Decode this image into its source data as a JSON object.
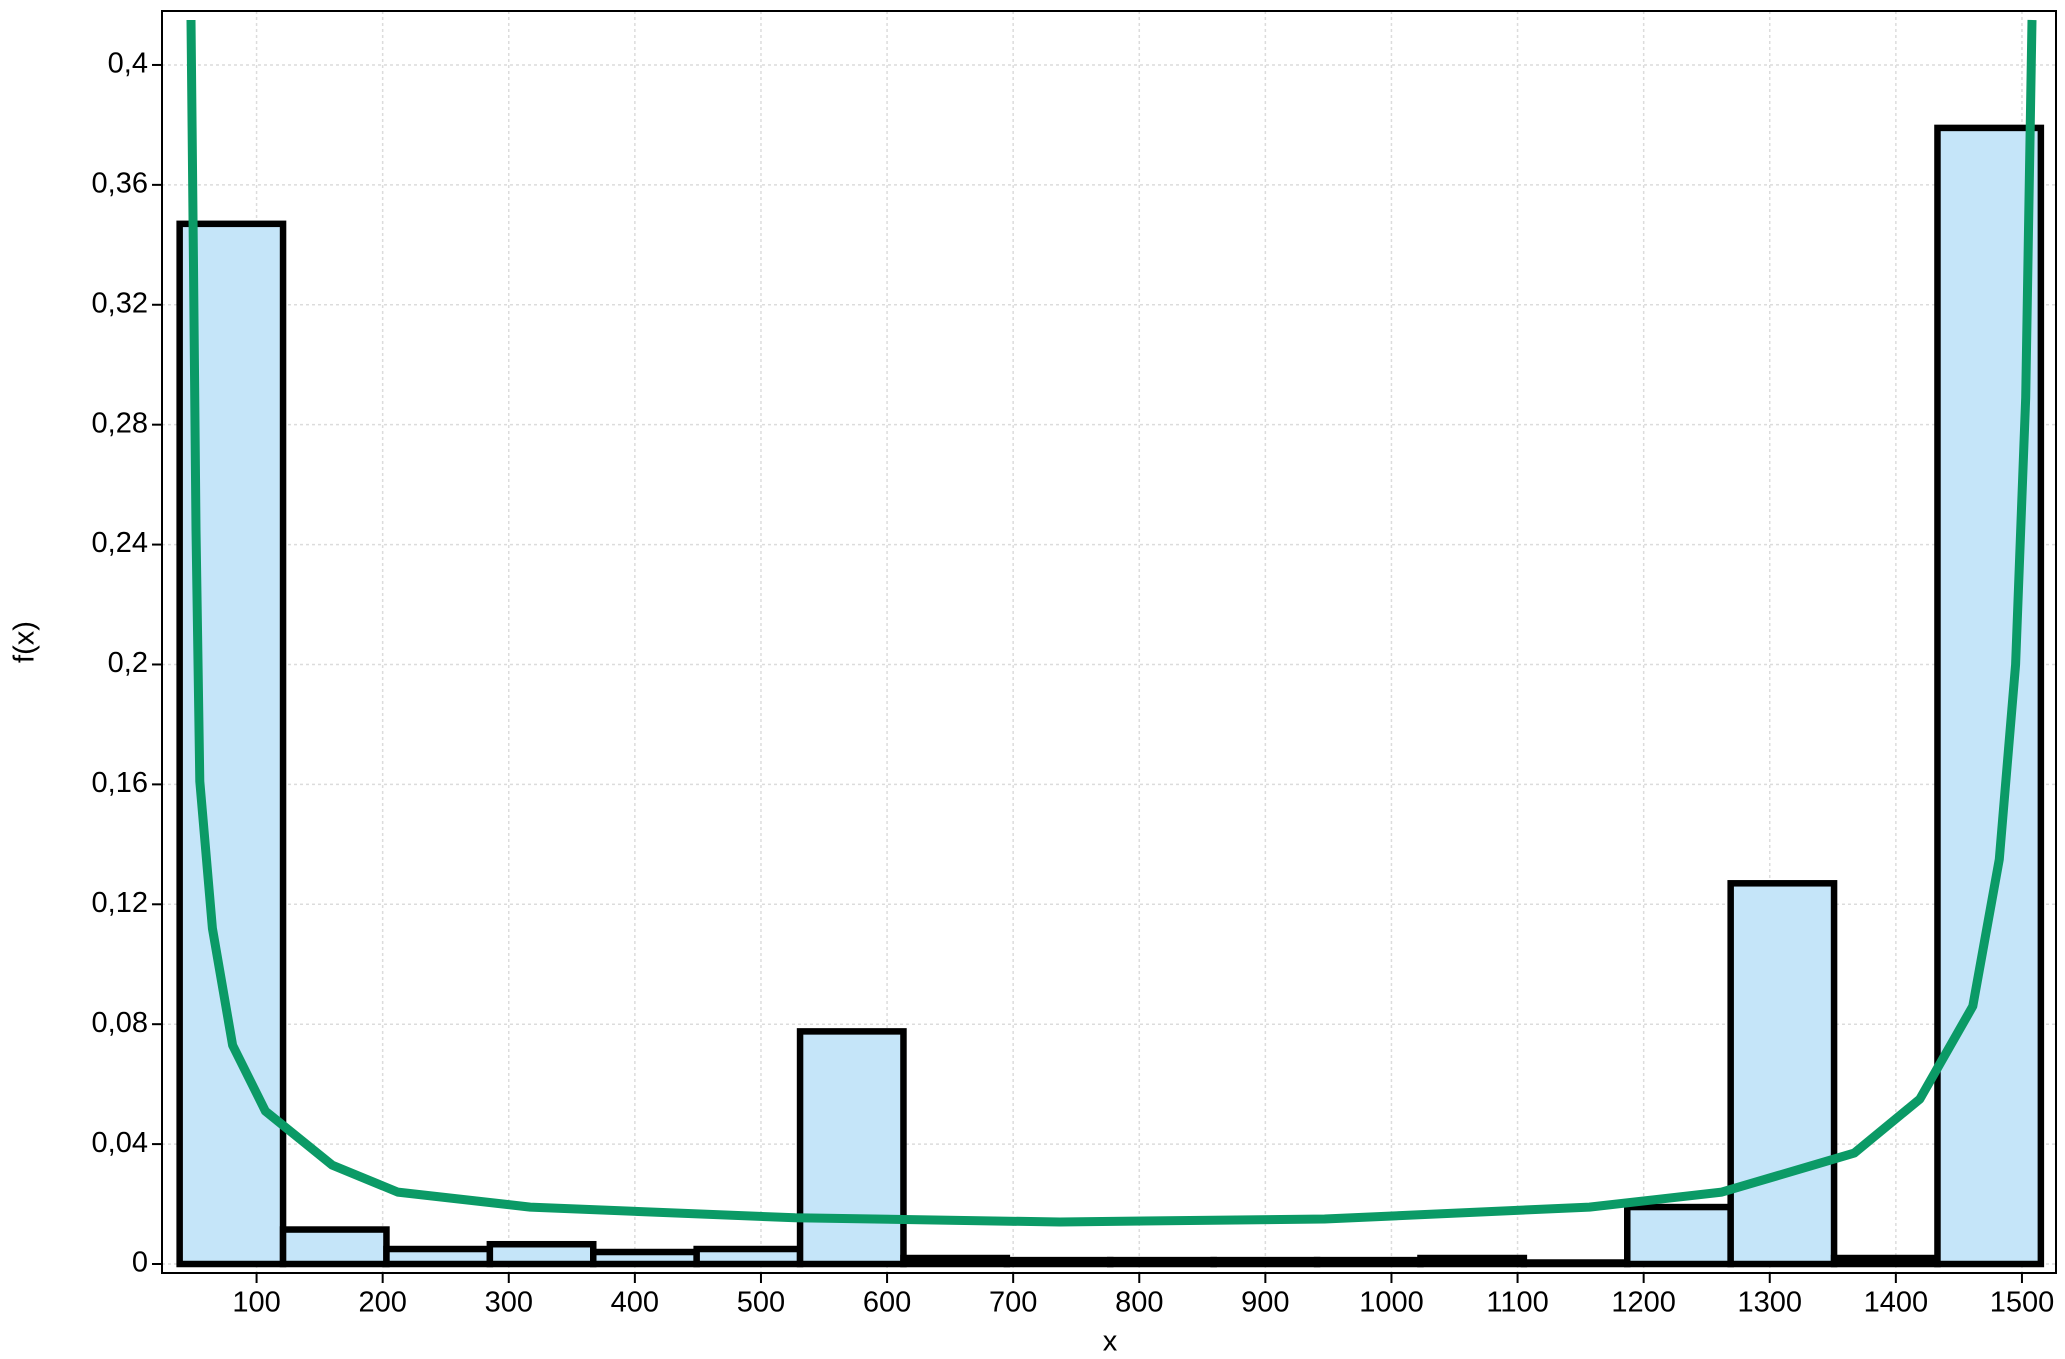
{
  "chart_data": {
    "type": "histogram",
    "x_label": "x",
    "y_label": "f(x)",
    "bins": [
      39,
      121,
      203,
      285,
      367,
      449,
      531,
      613,
      695,
      777,
      859,
      941,
      1023,
      1105,
      1187,
      1269,
      1351,
      1433,
      1515
    ],
    "values": [
      0.347,
      0.0115,
      0.005,
      0.0066,
      0.004,
      0.005,
      0.0776,
      0.002,
      0.0013,
      0.0013,
      0.0013,
      0.0013,
      0.002,
      0.0005,
      0.019,
      0.127,
      0.002,
      0.379
    ],
    "color": "#c5e5f9",
    "edge_color": "#000000",
    "curve": {
      "color": "#0b9a66",
      "x": [
        48,
        50,
        52,
        55,
        65,
        81,
        107,
        160,
        212,
        317,
        527,
        737,
        947,
        1157,
        1262,
        1367,
        1419,
        1461,
        1482,
        1495,
        1503,
        1508
      ],
      "y": [
        0.415,
        0.333,
        0.245,
        0.161,
        0.112,
        0.073,
        0.051,
        0.033,
        0.024,
        0.019,
        0.0154,
        0.014,
        0.015,
        0.019,
        0.024,
        0.037,
        0.055,
        0.086,
        0.135,
        0.2,
        0.289,
        0.415
      ]
    },
    "xlim": [
      25,
      1527
    ],
    "ylim": [
      -0.003,
      0.418
    ],
    "xticks": [
      100,
      200,
      300,
      400,
      500,
      600,
      700,
      800,
      900,
      1000,
      1100,
      1200,
      1300,
      1400,
      1500
    ],
    "yticks": [
      0,
      {
        "value": 0.04,
        "label": "0,04"
      },
      {
        "value": 0.08,
        "label": "0,08"
      },
      {
        "value": 0.12,
        "label": "0,12"
      },
      {
        "value": 0.16,
        "label": "0,16"
      },
      {
        "value": 0.2,
        "label": "0,2"
      },
      {
        "value": 0.24,
        "label": "0,24"
      },
      {
        "value": 0.28,
        "label": "0,28"
      },
      {
        "value": 0.32,
        "label": "0,32"
      },
      {
        "value": 0.36,
        "label": "0,36"
      },
      {
        "value": 0.4,
        "label": "0,4"
      }
    ],
    "grid": true
  }
}
